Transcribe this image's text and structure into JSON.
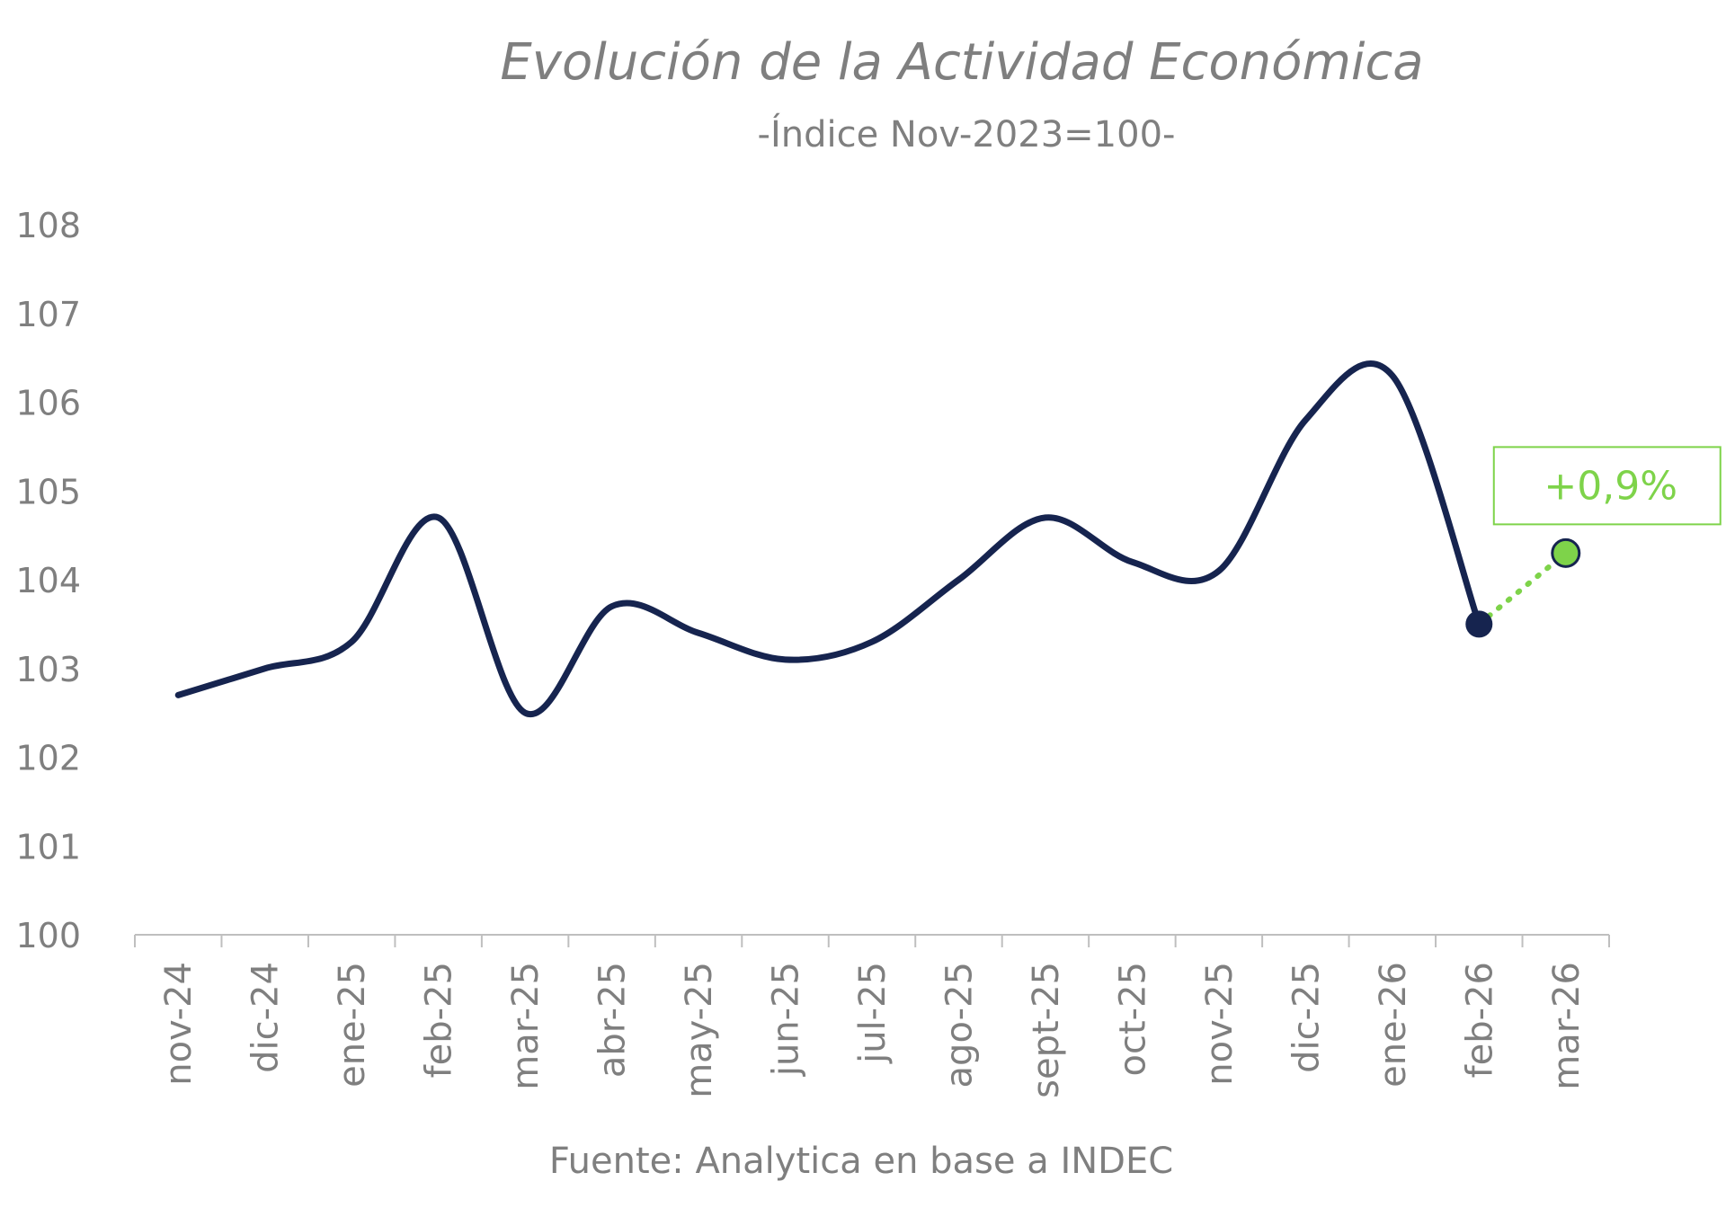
{
  "chart_data": {
    "type": "line",
    "title": "Evolución de la Actividad Económica",
    "subtitle": "-Índice Nov-2023=100-",
    "source": "Fuente: Analytica en base a INDEC",
    "categories": [
      "nov-24",
      "dic-24",
      "ene-25",
      "feb-25",
      "mar-25",
      "abr-25",
      "may-25",
      "jun-25",
      "jul-25",
      "ago-25",
      "sept-25",
      "oct-25",
      "nov-25",
      "dic-25",
      "ene-26",
      "feb-26",
      "mar-26"
    ],
    "series": [
      {
        "values": [
          102.7,
          103.0,
          103.3,
          104.7,
          102.5,
          103.7,
          103.4,
          103.1,
          103.3,
          104.0,
          104.7,
          104.2,
          104.1,
          105.8,
          106.3,
          103.5,
          null
        ],
        "color": "#16244f"
      },
      {
        "values": [
          null,
          null,
          null,
          null,
          null,
          null,
          null,
          null,
          null,
          null,
          null,
          null,
          null,
          null,
          null,
          103.5,
          104.3
        ],
        "color": "#7ed34a",
        "style": "dotted"
      }
    ],
    "yticks": [
      100,
      101,
      102,
      103,
      104,
      105,
      106,
      107,
      108
    ],
    "ylim": [
      100,
      108
    ],
    "annotation": {
      "text": "+0,9%",
      "category": "mar-26",
      "color": "#7ed34a"
    },
    "grid": false,
    "legend": "none"
  }
}
